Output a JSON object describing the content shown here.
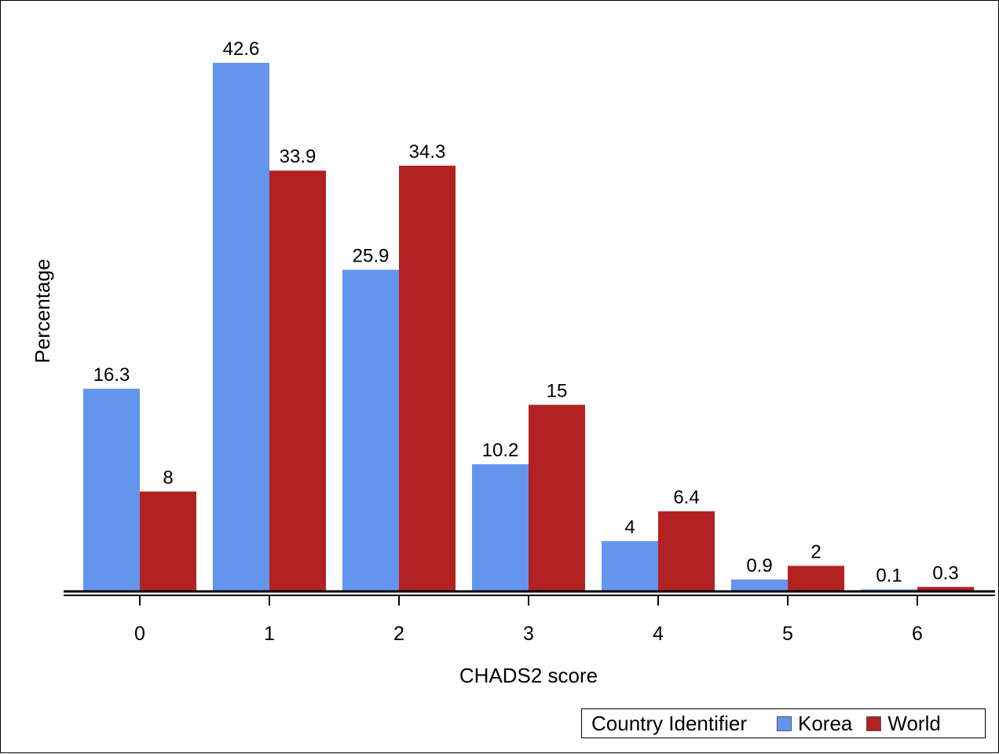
{
  "chart_data": {
    "type": "bar",
    "xlabel": "CHADS2 score",
    "ylabel": "Percentage",
    "categories": [
      "0",
      "1",
      "2",
      "3",
      "4",
      "5",
      "6"
    ],
    "series": [
      {
        "name": "Korea",
        "color": "#6495ED",
        "values": [
          16.3,
          42.6,
          25.9,
          10.2,
          4,
          0.9,
          0.1
        ],
        "labels": [
          "16.3",
          "42.6",
          "25.9",
          "10.2",
          "4",
          "0.9",
          "0.1"
        ]
      },
      {
        "name": "World",
        "color": "#B22222",
        "values": [
          8,
          33.9,
          34.3,
          15,
          6.4,
          2,
          0.3
        ],
        "labels": [
          "8",
          "33.9",
          "34.3",
          "15",
          "6.4",
          "2",
          "0.3"
        ]
      }
    ],
    "ylim": [
      0,
      42.6
    ],
    "grid": false,
    "legend": {
      "title": "Country Identifier",
      "position": "bottom-right"
    }
  }
}
